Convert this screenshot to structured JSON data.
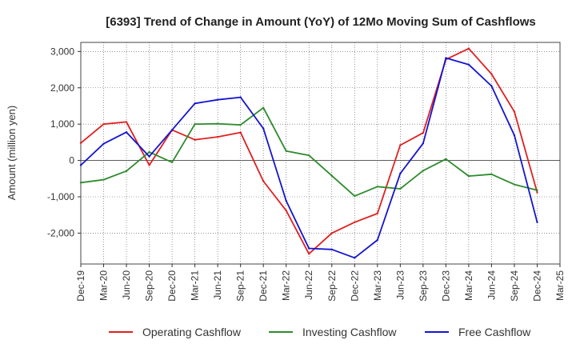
{
  "chart_data": {
    "type": "line",
    "title": "[6393]  Trend of Change in Amount (YoY) of 12Mo Moving Sum of Cashflows",
    "xlabel": "",
    "ylabel": "Amount (million yen)",
    "ylim": [
      -2850,
      3250
    ],
    "yticks": [
      3000,
      2000,
      1000,
      0,
      -1000,
      -2000
    ],
    "ytick_labels": [
      "3,000",
      "2,000",
      "1,000",
      "0",
      "-1,000",
      "-2,000"
    ],
    "categories": [
      "Dec-19",
      "Mar-20",
      "Jun-20",
      "Sep-20",
      "Dec-20",
      "Mar-21",
      "Jun-21",
      "Sep-21",
      "Dec-21",
      "Mar-22",
      "Jun-22",
      "Sep-22",
      "Dec-22",
      "Mar-23",
      "Jun-23",
      "Sep-23",
      "Dec-23",
      "Mar-24",
      "Jun-24",
      "Sep-24",
      "Dec-24",
      "Mar-25"
    ],
    "grid": true,
    "legend_position": "bottom",
    "series": [
      {
        "name": "Operating Cashflow",
        "color": "#e02020",
        "values": [
          480,
          1000,
          1060,
          -130,
          840,
          570,
          650,
          770,
          -570,
          -1380,
          -2570,
          -2000,
          -1700,
          -1460,
          420,
          760,
          2780,
          3080,
          2380,
          1340,
          -880,
          null
        ]
      },
      {
        "name": "Investing Cashflow",
        "color": "#2e8b2e",
        "values": [
          -610,
          -530,
          -290,
          230,
          -50,
          1000,
          1010,
          980,
          1450,
          260,
          140,
          -420,
          -980,
          -720,
          -780,
          -280,
          40,
          -430,
          -380,
          -660,
          -820,
          null
        ]
      },
      {
        "name": "Free Cashflow",
        "color": "#1414d0",
        "values": [
          -130,
          460,
          780,
          110,
          840,
          1570,
          1670,
          1740,
          880,
          -1110,
          -2420,
          -2450,
          -2680,
          -2190,
          -360,
          470,
          2820,
          2640,
          2050,
          690,
          -1700,
          null
        ]
      }
    ]
  }
}
